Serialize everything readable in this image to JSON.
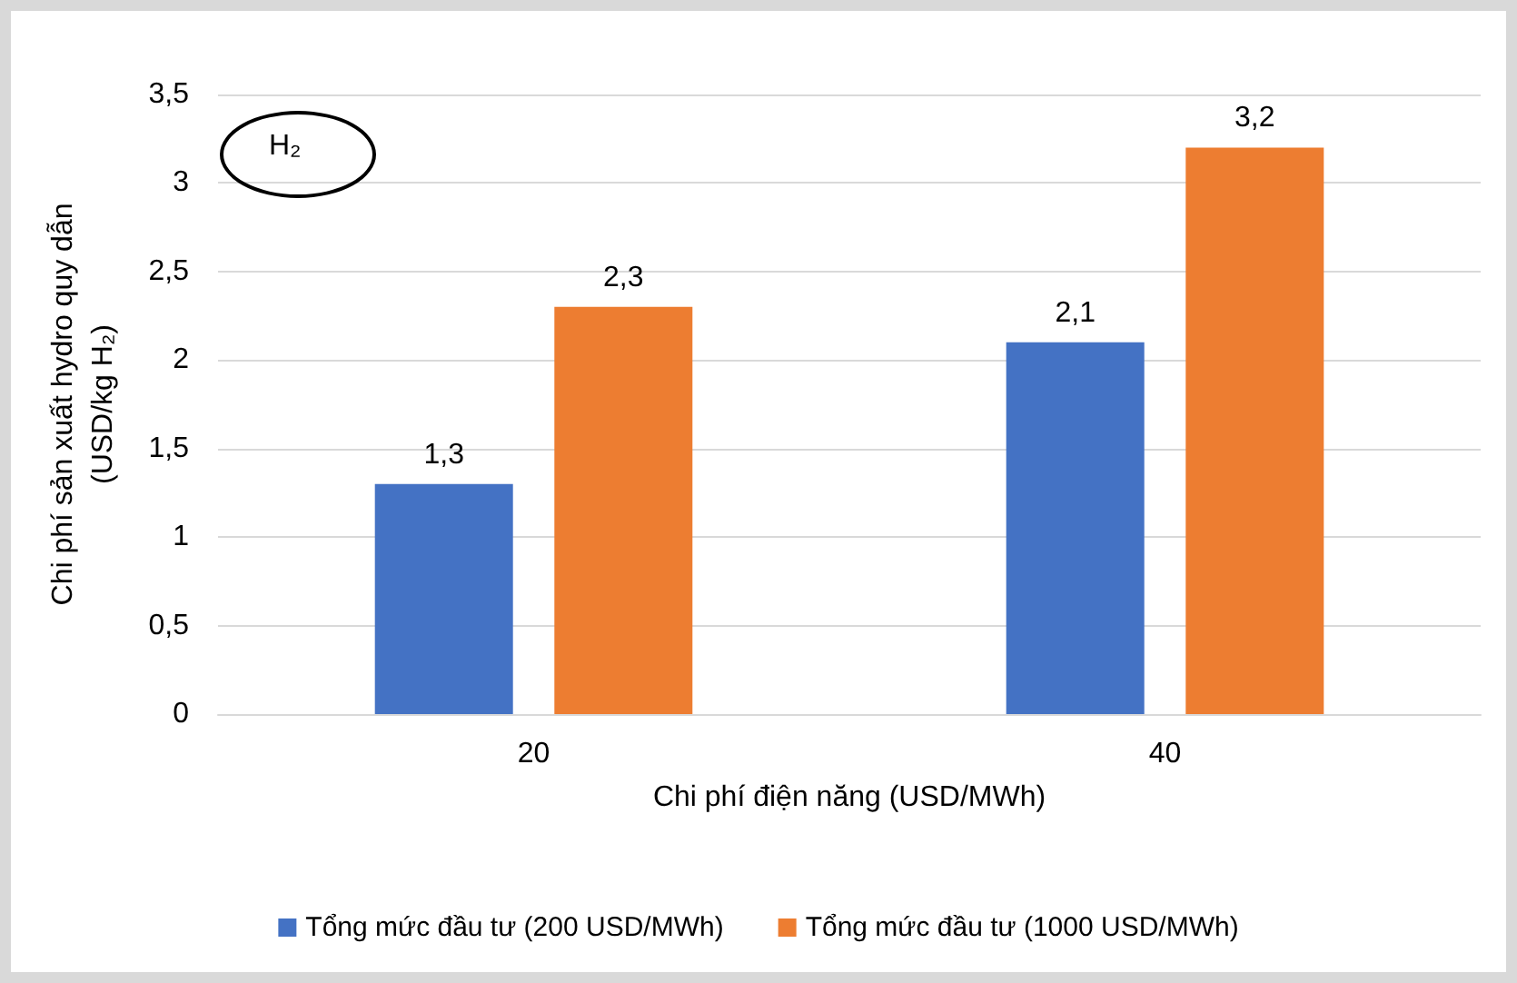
{
  "chart_data": {
    "type": "bar",
    "xlabel": "Chi phí điện năng (USD/MWh)",
    "ylabel": "Chi phí sản xuất hydro quy dẫn\n(USD/kg H₂)",
    "categories": [
      "20",
      "40"
    ],
    "series": [
      {
        "name": "Tổng mức đầu tư (200 USD/MWh)",
        "color": "#4472c4",
        "values": [
          1.3,
          2.1
        ],
        "value_labels": [
          "1,3",
          "2,1"
        ]
      },
      {
        "name": "Tổng mức đầu tư (1000 USD/MWh)",
        "color": "#ed7d31",
        "values": [
          2.3,
          3.2
        ],
        "value_labels": [
          "2,3",
          "3,2"
        ]
      }
    ],
    "ylim": [
      0,
      3.5
    ],
    "yticks": [
      0,
      {
        "value": 0.5,
        "label": "0,5"
      },
      1,
      {
        "value": 1.5,
        "label": "1,5"
      },
      2,
      {
        "value": 2.5,
        "label": "2,5"
      },
      3,
      {
        "value": 3.5,
        "label": "3,5"
      }
    ],
    "grid": "y",
    "legend": "bottom",
    "annotations": [
      "H₂"
    ]
  }
}
